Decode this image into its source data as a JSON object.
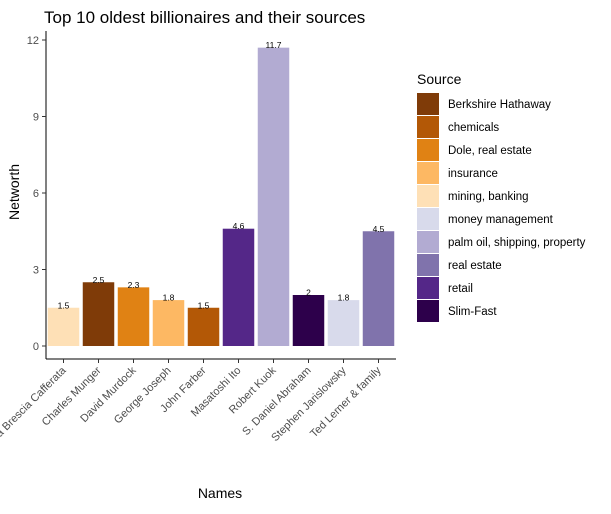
{
  "chart_data": {
    "type": "bar",
    "title": "Top 10 oldest billionaires and their sources",
    "xlabel": "Names",
    "ylabel": "Networth",
    "ylim": [
      0,
      12
    ],
    "yticks": [
      0,
      3,
      6,
      9,
      12
    ],
    "grid": false,
    "legend_position": "right",
    "legend_title": "Source",
    "categories": [
      "Ana Maria Brescia Cafferata",
      "Charles Munger",
      "David Murdock",
      "George Joseph",
      "John Farber",
      "Masatoshi Ito",
      "Robert Kuok",
      "S. Daniel Abraham",
      "Stephen Jarislowsky",
      "Ted Lerner & family"
    ],
    "values": [
      1.5,
      2.5,
      2.3,
      1.8,
      1.5,
      4.6,
      11.7,
      2,
      1.8,
      4.5
    ],
    "value_labels": [
      "1.5",
      "2.5",
      "2.3",
      "1.8",
      "1.5",
      "4.6",
      "11.7",
      "2",
      "1.8",
      "4.5"
    ],
    "bar_source": [
      "mining, banking",
      "Berkshire Hathaway",
      "Dole, real estate",
      "insurance",
      "chemicals",
      "retail",
      "palm oil, shipping, property",
      "Slim-Fast",
      "money management",
      "real estate"
    ],
    "legend": [
      {
        "label": "Berkshire Hathaway",
        "color": "#7f3b08"
      },
      {
        "label": "chemicals",
        "color": "#b35806"
      },
      {
        "label": "Dole, real estate",
        "color": "#e08214"
      },
      {
        "label": "insurance",
        "color": "#fdb863"
      },
      {
        "label": "mining, banking",
        "color": "#fee0b6"
      },
      {
        "label": "money management",
        "color": "#d8daeb"
      },
      {
        "label": "palm oil, shipping, property",
        "color": "#b2abd2"
      },
      {
        "label": "real estate",
        "color": "#8073ac"
      },
      {
        "label": "retail",
        "color": "#542788"
      },
      {
        "label": "Slim-Fast",
        "color": "#2d004b"
      }
    ]
  }
}
